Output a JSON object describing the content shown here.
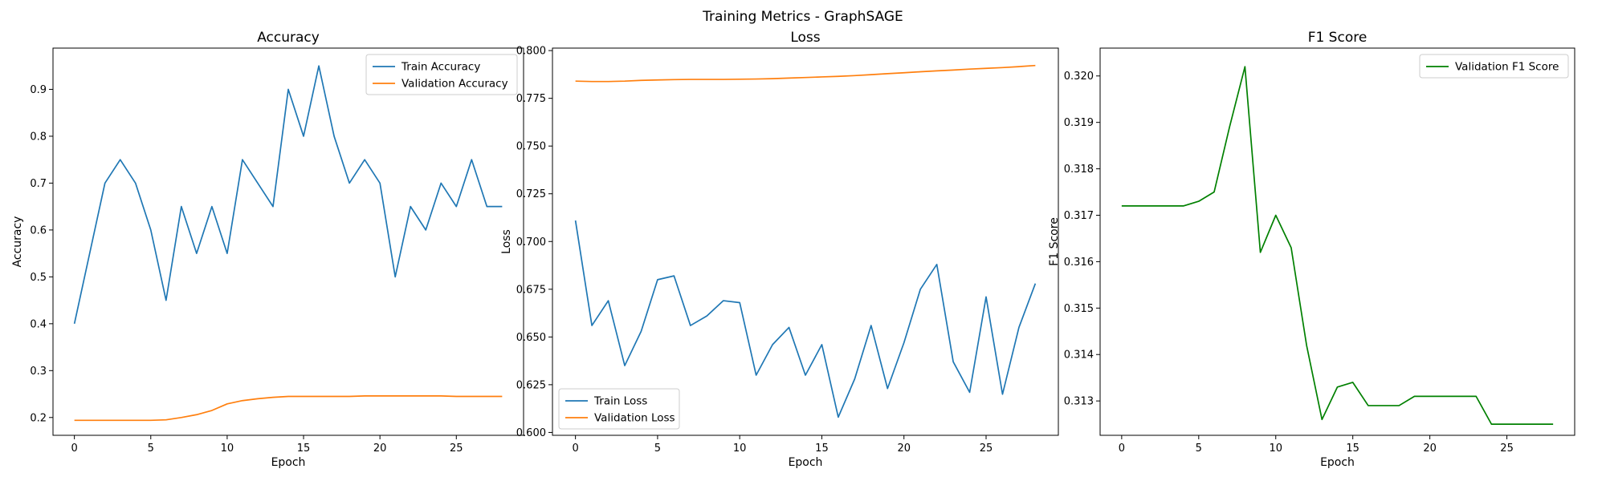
{
  "figure": {
    "title": "Training Metrics - GraphSAGE"
  },
  "chart_data": [
    {
      "type": "line",
      "title": "Accuracy",
      "xlabel": "Epoch",
      "ylabel": "Accuracy",
      "xlim": [
        -1.4,
        29.4
      ],
      "ylim": [
        0.162,
        0.988
      ],
      "xticks": [
        0,
        5,
        10,
        15,
        20,
        25
      ],
      "yticks": [
        0.2,
        0.3,
        0.4,
        0.5,
        0.6,
        0.7,
        0.8,
        0.9
      ],
      "legend": "upper-right",
      "x": [
        0,
        1,
        2,
        3,
        4,
        5,
        6,
        7,
        8,
        9,
        10,
        11,
        12,
        13,
        14,
        15,
        16,
        17,
        18,
        19,
        20,
        21,
        22,
        23,
        24,
        25,
        26,
        27,
        28
      ],
      "series": [
        {
          "name": "Train Accuracy",
          "color": "#1f77b4",
          "values": [
            0.4,
            0.55,
            0.7,
            0.75,
            0.7,
            0.6,
            0.45,
            0.65,
            0.55,
            0.65,
            0.55,
            0.75,
            0.7,
            0.65,
            0.9,
            0.8,
            0.95,
            0.8,
            0.7,
            0.75,
            0.7,
            0.5,
            0.65,
            0.6,
            0.7,
            0.65,
            0.75,
            0.65,
            0.65
          ]
        },
        {
          "name": "Validation Accuracy",
          "color": "#ff7f0e",
          "values": [
            0.194,
            0.194,
            0.194,
            0.194,
            0.194,
            0.194,
            0.195,
            0.2,
            0.206,
            0.215,
            0.229,
            0.236,
            0.24,
            0.243,
            0.245,
            0.245,
            0.245,
            0.245,
            0.245,
            0.246,
            0.246,
            0.246,
            0.246,
            0.246,
            0.246,
            0.245,
            0.245,
            0.245,
            0.245
          ]
        }
      ]
    },
    {
      "type": "line",
      "title": "Loss",
      "xlabel": "Epoch",
      "ylabel": "Loss",
      "xlim": [
        -1.4,
        29.4
      ],
      "ylim": [
        0.5985,
        0.8013
      ],
      "xticks": [
        0,
        5,
        10,
        15,
        20,
        25
      ],
      "yticks": [
        0.6,
        0.625,
        0.65,
        0.675,
        0.7,
        0.725,
        0.75,
        0.775,
        0.8
      ],
      "legend": "lower-left",
      "x": [
        0,
        1,
        2,
        3,
        4,
        5,
        6,
        7,
        8,
        9,
        10,
        11,
        12,
        13,
        14,
        15,
        16,
        17,
        18,
        19,
        20,
        21,
        22,
        23,
        24,
        25,
        26,
        27,
        28
      ],
      "series": [
        {
          "name": "Train Loss",
          "color": "#1f77b4",
          "values": [
            0.711,
            0.656,
            0.669,
            0.635,
            0.653,
            0.68,
            0.682,
            0.656,
            0.661,
            0.669,
            0.668,
            0.63,
            0.646,
            0.655,
            0.63,
            0.646,
            0.608,
            0.628,
            0.656,
            0.623,
            0.647,
            0.675,
            0.688,
            0.637,
            0.621,
            0.671,
            0.62,
            0.655,
            0.678
          ]
        },
        {
          "name": "Validation Loss",
          "color": "#ff7f0e",
          "values": [
            0.784,
            0.7838,
            0.7838,
            0.784,
            0.7844,
            0.7846,
            0.7848,
            0.7849,
            0.7849,
            0.7849,
            0.785,
            0.7851,
            0.7853,
            0.7856,
            0.7859,
            0.7862,
            0.7865,
            0.7869,
            0.7874,
            0.7879,
            0.7884,
            0.7889,
            0.7894,
            0.7898,
            0.7903,
            0.7907,
            0.7911,
            0.7916,
            0.7922
          ]
        }
      ]
    },
    {
      "type": "line",
      "title": "F1 Score",
      "xlabel": "Epoch",
      "ylabel": "F1 Score",
      "xlim": [
        -1.4,
        29.4
      ],
      "ylim": [
        0.31226,
        0.3206
      ],
      "xticks": [
        0,
        5,
        10,
        15,
        20,
        25
      ],
      "yticks": [
        0.313,
        0.314,
        0.315,
        0.316,
        0.317,
        0.318,
        0.319,
        0.32
      ],
      "legend": "upper-right",
      "x": [
        0,
        1,
        2,
        3,
        4,
        5,
        6,
        7,
        8,
        9,
        10,
        11,
        12,
        13,
        14,
        15,
        16,
        17,
        18,
        19,
        20,
        21,
        22,
        23,
        24,
        25,
        26,
        27,
        28
      ],
      "series": [
        {
          "name": "Validation F1 Score",
          "color": "#008000",
          "values": [
            0.3172,
            0.3172,
            0.3172,
            0.3172,
            0.3172,
            0.3173,
            0.3175,
            0.3189,
            0.3202,
            0.3162,
            0.317,
            0.3163,
            0.3142,
            0.3126,
            0.3133,
            0.3134,
            0.3129,
            0.3129,
            0.3129,
            0.3131,
            0.3131,
            0.3131,
            0.3131,
            0.3131,
            0.3125,
            0.3125,
            0.3125,
            0.3125,
            0.3125
          ]
        }
      ]
    }
  ]
}
